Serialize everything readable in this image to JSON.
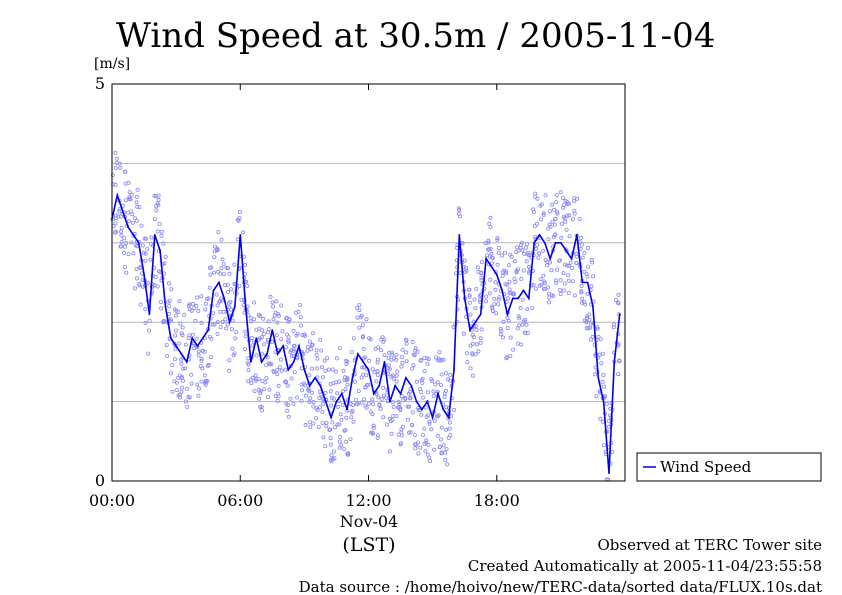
{
  "chart_data": {
    "type": "line",
    "title": "Wind Speed at 30.5m / 2005-11-04",
    "y_unit": "[m/s]",
    "ylim": [
      0,
      5
    ],
    "y_ticks": [
      {
        "value": 0,
        "label": "0"
      },
      {
        "value": 5,
        "label": "5"
      }
    ],
    "y_grid_values": [
      1,
      2,
      3,
      4
    ],
    "xlim": [
      0,
      24
    ],
    "x_ticks": [
      {
        "value": 0,
        "label": "00:00"
      },
      {
        "value": 6,
        "label": "06:00"
      },
      {
        "value": 12,
        "label": "12:00"
      },
      {
        "value": 18,
        "label": "18:00"
      }
    ],
    "x_date_label": "Nov-04",
    "xlabel": "(LST)",
    "grid": "horizontal",
    "legend_position": "right",
    "series": [
      {
        "name": "Wind Speed",
        "color": "#0000ee",
        "scatter_color": "#8a8af5",
        "x": [
          0.0,
          0.25,
          0.5,
          0.75,
          1.0,
          1.25,
          1.5,
          1.75,
          2.0,
          2.25,
          2.5,
          2.75,
          3.0,
          3.25,
          3.5,
          3.75,
          4.0,
          4.25,
          4.5,
          4.75,
          5.0,
          5.25,
          5.5,
          5.75,
          6.0,
          6.25,
          6.5,
          6.75,
          7.0,
          7.25,
          7.5,
          7.75,
          8.0,
          8.25,
          8.5,
          8.75,
          9.0,
          9.25,
          9.5,
          9.75,
          10.0,
          10.25,
          10.5,
          10.75,
          11.0,
          11.25,
          11.5,
          11.75,
          12.0,
          12.25,
          12.5,
          12.75,
          13.0,
          13.25,
          13.5,
          13.75,
          14.0,
          14.25,
          14.5,
          14.75,
          15.0,
          15.25,
          15.5,
          15.75,
          16.0,
          16.25,
          16.5,
          16.75,
          17.0,
          17.25,
          17.5,
          17.75,
          18.0,
          18.25,
          18.5,
          18.75,
          19.0,
          19.25,
          19.5,
          19.75,
          20.0,
          20.25,
          20.5,
          20.75,
          21.0,
          21.25,
          21.5,
          21.75,
          22.0,
          22.25,
          22.5,
          22.75,
          23.0,
          23.25,
          23.5,
          23.75
        ],
        "y": [
          3.3,
          3.6,
          3.4,
          3.2,
          3.1,
          3.0,
          2.6,
          2.1,
          3.1,
          2.9,
          2.2,
          1.8,
          1.7,
          1.6,
          1.5,
          1.8,
          1.7,
          1.8,
          1.9,
          2.4,
          2.5,
          2.3,
          2.0,
          2.2,
          3.1,
          2.2,
          1.5,
          1.8,
          1.5,
          1.6,
          1.9,
          1.6,
          1.7,
          1.4,
          1.5,
          1.7,
          1.4,
          1.2,
          1.3,
          1.2,
          1.0,
          0.8,
          1.0,
          1.1,
          0.9,
          1.3,
          1.6,
          1.5,
          1.4,
          1.1,
          1.2,
          1.5,
          1.0,
          1.2,
          1.1,
          1.3,
          1.2,
          1.0,
          0.9,
          1.0,
          0.8,
          1.1,
          0.9,
          0.8,
          1.4,
          3.1,
          2.3,
          1.9,
          2.0,
          2.1,
          2.8,
          2.7,
          2.6,
          2.4,
          2.1,
          2.3,
          2.3,
          2.4,
          2.3,
          3.0,
          3.1,
          3.0,
          2.8,
          3.0,
          3.0,
          2.9,
          2.8,
          3.1,
          2.5,
          2.5,
          2.2,
          1.3,
          1.0,
          0.1,
          1.5,
          2.1
        ]
      }
    ]
  },
  "footer": {
    "observed": "Observed at TERC Tower site",
    "created": "Created Automatically at 2005-11-04/23:55:58",
    "source": "Data source : /home/hoivo/new/TERC-data/sorted  data/FLUX.10s.dat"
  }
}
